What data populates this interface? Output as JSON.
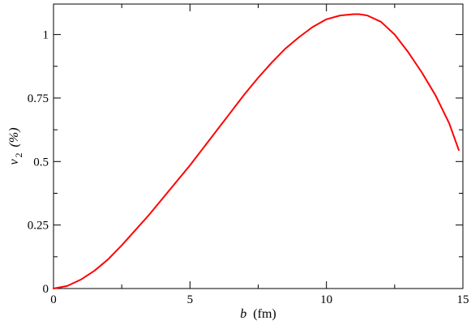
{
  "chart_data": {
    "type": "line",
    "xlabel": {
      "symbol": "b",
      "unit": "(fm)"
    },
    "ylabel": {
      "symbol": "v",
      "subscript": "2",
      "unit": "(%)"
    },
    "xlim": [
      0,
      15
    ],
    "ylim": [
      0,
      1.12
    ],
    "xticks": [
      {
        "value": 0,
        "label": "0"
      },
      {
        "value": 5,
        "label": "5"
      },
      {
        "value": 10,
        "label": "10"
      },
      {
        "value": 15,
        "label": "15"
      }
    ],
    "yticks": [
      {
        "value": 0,
        "label": "0"
      },
      {
        "value": 0.25,
        "label": "0.25"
      },
      {
        "value": 0.5,
        "label": "0.5"
      },
      {
        "value": 0.75,
        "label": "0.75"
      },
      {
        "value": 1,
        "label": "1"
      }
    ],
    "grid": false,
    "series": [
      {
        "color": "#ff0000",
        "x": [
          0,
          0.5,
          1,
          1.5,
          2,
          2.5,
          3,
          3.5,
          4,
          4.5,
          5,
          5.5,
          6,
          6.5,
          7,
          7.5,
          8,
          8.5,
          9,
          9.5,
          10,
          10.5,
          11,
          11.2,
          11.5,
          12,
          12.5,
          13,
          13.5,
          14,
          14.5,
          14.85
        ],
        "y": [
          0,
          0.01,
          0.035,
          0.07,
          0.115,
          0.17,
          0.23,
          0.29,
          0.355,
          0.42,
          0.485,
          0.555,
          0.625,
          0.695,
          0.765,
          0.83,
          0.89,
          0.945,
          0.99,
          1.03,
          1.06,
          1.075,
          1.08,
          1.08,
          1.075,
          1.05,
          1.0,
          0.93,
          0.85,
          0.76,
          0.65,
          0.545
        ]
      }
    ]
  }
}
